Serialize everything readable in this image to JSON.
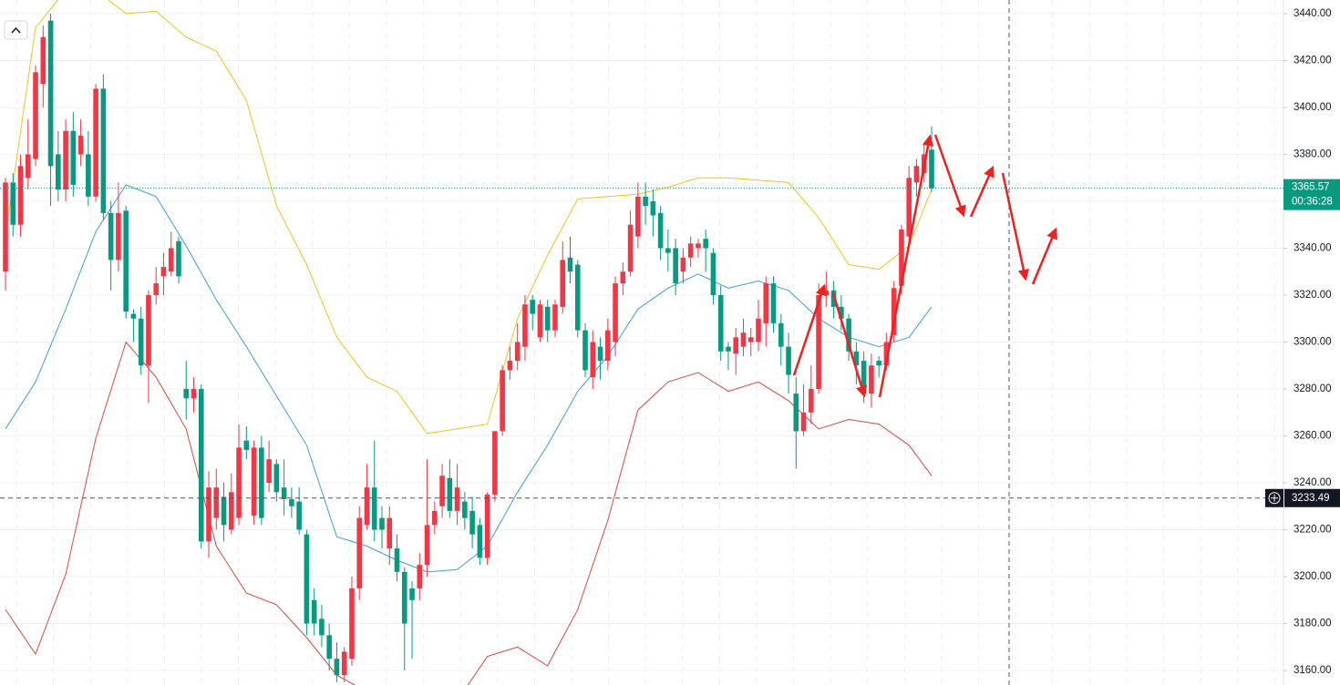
{
  "chart_data": {
    "type": "candlestick",
    "up_color": "#f23645",
    "down_color": "#089981",
    "open": [
      3330,
      3368,
      3350,
      3370,
      3378,
      3410,
      3437,
      3380,
      3365,
      3390,
      3380,
      3380,
      3362,
      3408,
      3355,
      3335,
      3356,
      3312,
      3310,
      3290,
      3320,
      3328,
      3330,
      3343,
      3280,
      3276,
      3280,
      3215,
      3225,
      3234,
      3220,
      3225,
      3258,
      3226,
      3255,
      3240,
      3248,
      3238,
      3233,
      3232,
      3218,
      3190,
      3182,
      3175,
      3165,
      3158,
      3165,
      3195,
      3222,
      3238,
      3225,
      3212,
      3212,
      3202,
      3195,
      3195,
      3205,
      3222,
      3230,
      3242,
      3228,
      3232,
      3228,
      3222,
      3208,
      3235,
      3262,
      3288,
      3292,
      3298,
      3318,
      3302,
      3315,
      3305,
      3315,
      3336,
      3333,
      3305,
      3285,
      3298,
      3292,
      3300,
      3325,
      3330,
      3345,
      3362,
      3360,
      3355,
      3340,
      3340,
      3330,
      3336,
      3340,
      3344,
      3338,
      3320,
      3298,
      3295,
      3298,
      3300,
      3300,
      3308,
      3325,
      3308,
      3298,
      3278,
      3262,
      3270,
      3280,
      3320,
      3322,
      3315,
      3310,
      3296,
      3292,
      3278,
      3292,
      3290,
      3303,
      3324,
      3345,
      3368,
      3372,
      3382
    ],
    "high": [
      3370,
      3372,
      3380,
      3395,
      3418,
      3435,
      3440,
      3390,
      3395,
      3398,
      3395,
      3390,
      3410,
      3414,
      3360,
      3368,
      3358,
      3314,
      3315,
      3322,
      3332,
      3338,
      3347,
      3345,
      3292,
      3285,
      3282,
      3245,
      3246,
      3240,
      3244,
      3265,
      3264,
      3258,
      3260,
      3258,
      3250,
      3250,
      3238,
      3238,
      3220,
      3195,
      3188,
      3180,
      3172,
      3170,
      3200,
      3230,
      3248,
      3258,
      3230,
      3230,
      3218,
      3204,
      3198,
      3210,
      3250,
      3232,
      3248,
      3250,
      3248,
      3236,
      3234,
      3225,
      3236,
      3262,
      3290,
      3298,
      3308,
      3320,
      3320,
      3318,
      3318,
      3318,
      3343,
      3345,
      3335,
      3308,
      3305,
      3302,
      3310,
      3328,
      3334,
      3356,
      3368,
      3368,
      3365,
      3358,
      3348,
      3344,
      3340,
      3345,
      3344,
      3348,
      3340,
      3324,
      3300,
      3306,
      3310,
      3306,
      3318,
      3328,
      3328,
      3312,
      3304,
      3285,
      3282,
      3290,
      3325,
      3330,
      3326,
      3320,
      3312,
      3300,
      3296,
      3295,
      3294,
      3304,
      3326,
      3350,
      3375,
      3378,
      3385,
      3392
    ],
    "low": [
      3322,
      3345,
      3345,
      3365,
      3375,
      3400,
      3358,
      3360,
      3360,
      3362,
      3375,
      3358,
      3360,
      3352,
      3322,
      3330,
      3310,
      3300,
      3286,
      3274,
      3316,
      3320,
      3328,
      3325,
      3267,
      3270,
      3212,
      3208,
      3220,
      3215,
      3218,
      3222,
      3250,
      3222,
      3222,
      3236,
      3232,
      3226,
      3225,
      3218,
      3175,
      3175,
      3170,
      3160,
      3155,
      3155,
      3162,
      3190,
      3220,
      3215,
      3212,
      3205,
      3198,
      3160,
      3165,
      3190,
      3200,
      3218,
      3225,
      3225,
      3222,
      3220,
      3212,
      3205,
      3205,
      3232,
      3260,
      3284,
      3288,
      3292,
      3305,
      3300,
      3300,
      3302,
      3312,
      3325,
      3302,
      3285,
      3280,
      3284,
      3288,
      3294,
      3320,
      3328,
      3340,
      3350,
      3345,
      3335,
      3330,
      3320,
      3325,
      3332,
      3336,
      3330,
      3316,
      3292,
      3288,
      3286,
      3294,
      3294,
      3296,
      3298,
      3304,
      3290,
      3278,
      3246,
      3260,
      3265,
      3278,
      3315,
      3310,
      3305,
      3292,
      3282,
      3274,
      3272,
      3285,
      3288,
      3300,
      3320,
      3340,
      3362,
      3368,
      3364
    ],
    "close": [
      3368,
      3350,
      3375,
      3380,
      3415,
      3430,
      3375,
      3365,
      3390,
      3367,
      3388,
      3362,
      3408,
      3355,
      3335,
      3355,
      3313,
      3310,
      3290,
      3320,
      3325,
      3332,
      3340,
      3328,
      3276,
      3280,
      3215,
      3238,
      3238,
      3222,
      3236,
      3255,
      3254,
      3255,
      3225,
      3250,
      3236,
      3233,
      3230,
      3220,
      3180,
      3180,
      3175,
      3165,
      3158,
      3168,
      3195,
      3225,
      3238,
      3220,
      3220,
      3225,
      3202,
      3180,
      3190,
      3205,
      3222,
      3228,
      3243,
      3228,
      3238,
      3225,
      3218,
      3208,
      3235,
      3262,
      3288,
      3292,
      3300,
      3316,
      3312,
      3316,
      3305,
      3316,
      3335,
      3330,
      3305,
      3288,
      3300,
      3292,
      3305,
      3325,
      3330,
      3350,
      3362,
      3358,
      3354,
      3340,
      3338,
      3325,
      3336,
      3342,
      3342,
      3340,
      3320,
      3296,
      3296,
      3302,
      3304,
      3302,
      3310,
      3325,
      3308,
      3298,
      3286,
      3262,
      3270,
      3280,
      3320,
      3322,
      3315,
      3310,
      3296,
      3290,
      3278,
      3290,
      3290,
      3300,
      3323,
      3348,
      3370,
      3375,
      3380,
      3365.57
    ],
    "bands": {
      "x": [
        0,
        4,
        8,
        12,
        16,
        20,
        24,
        28,
        32,
        36,
        40,
        44,
        48,
        52,
        56,
        60,
        64,
        68,
        72,
        76,
        80,
        84,
        88,
        92,
        96,
        100,
        104,
        108,
        112,
        116,
        120,
        123
      ],
      "series": [
        {
          "color": "#f2c21b",
          "values": [
            3345,
            3434,
            3450,
            3450,
            3440,
            3441,
            3430,
            3424,
            3403,
            3358,
            3333,
            3302,
            3285,
            3279,
            3261,
            3263,
            3265,
            3310,
            3337,
            3361,
            3362,
            3363,
            3366,
            3370,
            3370,
            3369,
            3368,
            3353,
            3333,
            3331,
            3341,
            3365
          ]
        },
        {
          "color": "#3d9fd6",
          "values": [
            3263,
            3283,
            3314,
            3347,
            3367,
            3362,
            3341,
            3318,
            3298,
            3277,
            3256,
            3217,
            3213,
            3207,
            3202,
            3203,
            3213,
            3236,
            3256,
            3279,
            3294,
            3314,
            3323,
            3329,
            3323,
            3326,
            3322,
            3310,
            3302,
            3298,
            3302,
            3315
          ]
        },
        {
          "color": "#e0473a",
          "values": [
            3186,
            3167,
            3201,
            3259,
            3300,
            3285,
            3263,
            3213,
            3193,
            3188,
            3174,
            3158,
            3151,
            3147,
            3145,
            3147,
            3166,
            3170,
            3162,
            3186,
            3224,
            3271,
            3283,
            3287,
            3279,
            3283,
            3275,
            3263,
            3267,
            3265,
            3256,
            3243
          ]
        }
      ]
    },
    "ylim": [
      3153.8,
      3445.8
    ],
    "yticks": [
      {
        "value": 3160,
        "label": "3160.00"
      },
      {
        "value": 3180,
        "label": "3180.00"
      },
      {
        "value": 3200,
        "label": "3200.00"
      },
      {
        "value": 3220,
        "label": "3220.00"
      },
      {
        "value": 3240,
        "label": "3240.00"
      },
      {
        "value": 3260,
        "label": "3260.00"
      },
      {
        "value": 3280,
        "label": "3280.00"
      },
      {
        "value": 3300,
        "label": "3300.00"
      },
      {
        "value": 3320,
        "label": "3320.00"
      },
      {
        "value": 3340,
        "label": "3340.00"
      },
      {
        "value": 3360,
        "label": "3360.00"
      },
      {
        "value": 3380,
        "label": "3380.00"
      },
      {
        "value": 3400,
        "label": "3400.00"
      },
      {
        "value": 3420,
        "label": "3420.00"
      },
      {
        "value": 3440,
        "label": "3440.00"
      }
    ],
    "grid": true,
    "last_price": 3365.57,
    "countdown": "00:36:28",
    "crosshair_price": 3233.49
  }
}
